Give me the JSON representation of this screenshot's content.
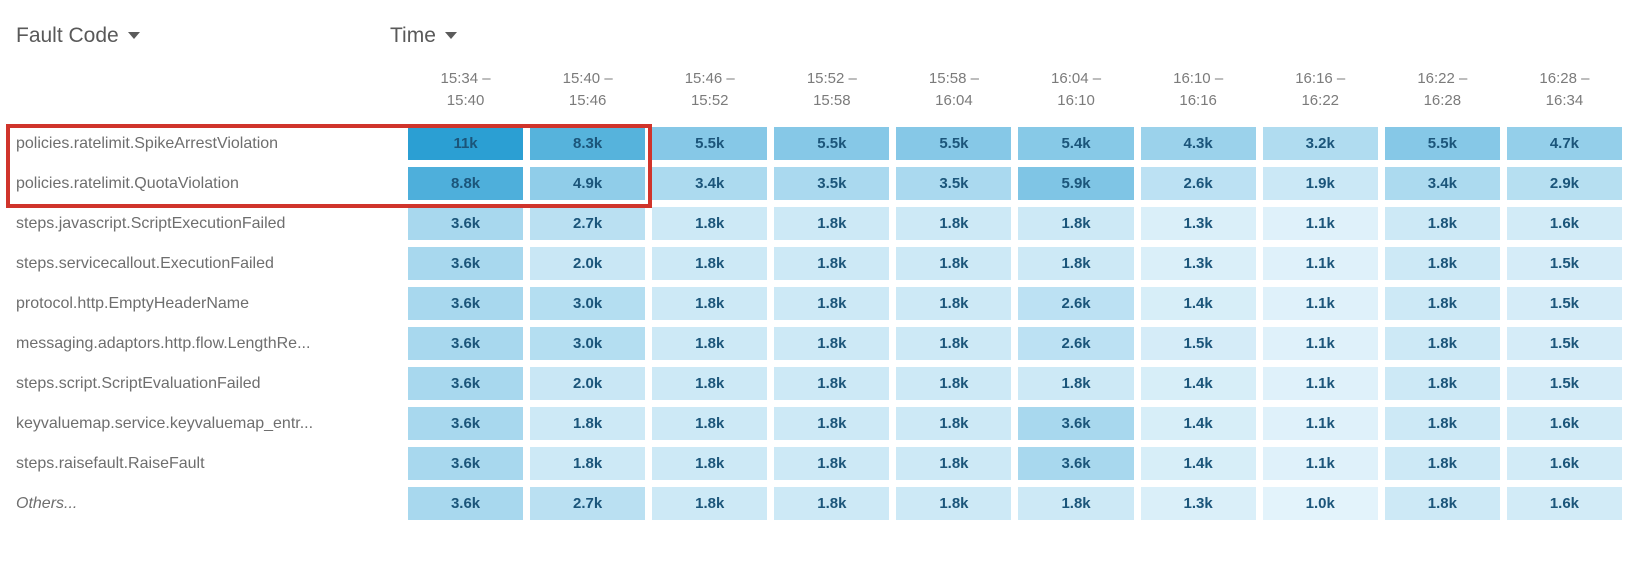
{
  "header": {
    "fault_code_label": "Fault Code",
    "time_label": "Time"
  },
  "chart_data": {
    "type": "heatmap",
    "x_label": "Time",
    "y_label": "Fault Code",
    "x_categories": [
      "15:34 –\n15:40",
      "15:40 –\n15:46",
      "15:46 –\n15:52",
      "15:52 –\n15:58",
      "15:58 –\n16:04",
      "16:04 –\n16:10",
      "16:10 –\n16:16",
      "16:16 –\n16:22",
      "16:22 –\n16:28",
      "16:28 –\n16:34"
    ],
    "rows": [
      {
        "label": "policies.ratelimit.SpikeArrestViolation",
        "display": [
          "11k",
          "8.3k",
          "5.5k",
          "5.5k",
          "5.5k",
          "5.4k",
          "4.3k",
          "3.2k",
          "5.5k",
          "4.7k"
        ],
        "values": [
          11000,
          8300,
          5500,
          5500,
          5500,
          5400,
          4300,
          3200,
          5500,
          4700
        ]
      },
      {
        "label": "policies.ratelimit.QuotaViolation",
        "display": [
          "8.8k",
          "4.9k",
          "3.4k",
          "3.5k",
          "3.5k",
          "5.9k",
          "2.6k",
          "1.9k",
          "3.4k",
          "2.9k"
        ],
        "values": [
          8800,
          4900,
          3400,
          3500,
          3500,
          5900,
          2600,
          1900,
          3400,
          2900
        ]
      },
      {
        "label": "steps.javascript.ScriptExecutionFailed",
        "display": [
          "3.6k",
          "2.7k",
          "1.8k",
          "1.8k",
          "1.8k",
          "1.8k",
          "1.3k",
          "1.1k",
          "1.8k",
          "1.6k"
        ],
        "values": [
          3600,
          2700,
          1800,
          1800,
          1800,
          1800,
          1300,
          1100,
          1800,
          1600
        ]
      },
      {
        "label": "steps.servicecallout.ExecutionFailed",
        "display": [
          "3.6k",
          "2.0k",
          "1.8k",
          "1.8k",
          "1.8k",
          "1.8k",
          "1.3k",
          "1.1k",
          "1.8k",
          "1.5k"
        ],
        "values": [
          3600,
          2000,
          1800,
          1800,
          1800,
          1800,
          1300,
          1100,
          1800,
          1500
        ]
      },
      {
        "label": "protocol.http.EmptyHeaderName",
        "display": [
          "3.6k",
          "3.0k",
          "1.8k",
          "1.8k",
          "1.8k",
          "2.6k",
          "1.4k",
          "1.1k",
          "1.8k",
          "1.5k"
        ],
        "values": [
          3600,
          3000,
          1800,
          1800,
          1800,
          2600,
          1400,
          1100,
          1800,
          1500
        ]
      },
      {
        "label": "messaging.adaptors.http.flow.LengthRe...",
        "display": [
          "3.6k",
          "3.0k",
          "1.8k",
          "1.8k",
          "1.8k",
          "2.6k",
          "1.5k",
          "1.1k",
          "1.8k",
          "1.5k"
        ],
        "values": [
          3600,
          3000,
          1800,
          1800,
          1800,
          2600,
          1500,
          1100,
          1800,
          1500
        ]
      },
      {
        "label": "steps.script.ScriptEvaluationFailed",
        "display": [
          "3.6k",
          "2.0k",
          "1.8k",
          "1.8k",
          "1.8k",
          "1.8k",
          "1.4k",
          "1.1k",
          "1.8k",
          "1.5k"
        ],
        "values": [
          3600,
          2000,
          1800,
          1800,
          1800,
          1800,
          1400,
          1100,
          1800,
          1500
        ]
      },
      {
        "label": "keyvaluemap.service.keyvaluemap_entr...",
        "display": [
          "3.6k",
          "1.8k",
          "1.8k",
          "1.8k",
          "1.8k",
          "3.6k",
          "1.4k",
          "1.1k",
          "1.8k",
          "1.6k"
        ],
        "values": [
          3600,
          1800,
          1800,
          1800,
          1800,
          3600,
          1400,
          1100,
          1800,
          1600
        ]
      },
      {
        "label": "steps.raisefault.RaiseFault",
        "display": [
          "3.6k",
          "1.8k",
          "1.8k",
          "1.8k",
          "1.8k",
          "3.6k",
          "1.4k",
          "1.1k",
          "1.8k",
          "1.6k"
        ],
        "values": [
          3600,
          1800,
          1800,
          1800,
          1800,
          3600,
          1400,
          1100,
          1800,
          1600
        ]
      },
      {
        "label": "Others...",
        "italic": true,
        "display": [
          "3.6k",
          "2.7k",
          "1.8k",
          "1.8k",
          "1.8k",
          "1.8k",
          "1.3k",
          "1.0k",
          "1.8k",
          "1.6k"
        ],
        "values": [
          3600,
          2700,
          1800,
          1800,
          1800,
          1800,
          1300,
          1000,
          1800,
          1600
        ]
      }
    ],
    "scale": {
      "min": 1000,
      "max": 11000,
      "min_color": "#e3f3fb",
      "max_color": "#2b9fd3",
      "gamma": 0.85
    },
    "cell_text_color": "#1b557a",
    "grid": false,
    "legend_position": "none"
  },
  "annotation": {
    "shape": "rectangle",
    "color": "#d0342b",
    "covers_rows": [
      0,
      1
    ],
    "covers_columns": [
      0,
      1
    ],
    "includes_row_labels": true
  }
}
